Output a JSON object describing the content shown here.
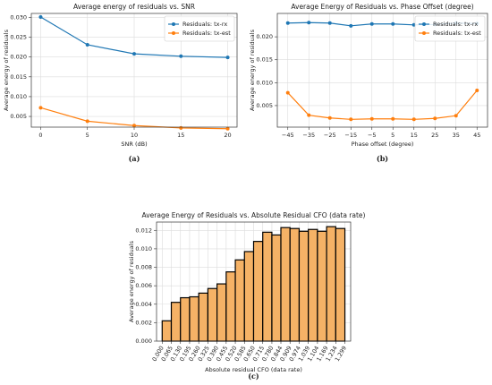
{
  "chart_data": [
    {
      "type": "line",
      "title": "Average energy of residuals vs. SNR",
      "x_label": "SNR (dB)",
      "y_label": "Average energy of residuals",
      "caption": "(a)",
      "x": [
        0,
        5,
        10,
        15,
        20
      ],
      "series": [
        {
          "name": "Residuals: tx-rx",
          "color": "#1f77b4",
          "values": [
            0.0301,
            0.0231,
            0.0208,
            0.0202,
            0.0199
          ]
        },
        {
          "name": "Residuals: tx-est",
          "color": "#ff7f0e",
          "values": [
            0.0072,
            0.0038,
            0.0027,
            0.0021,
            0.0019
          ]
        }
      ],
      "xlim": [
        -1,
        21
      ],
      "xticks": [
        0,
        5,
        10,
        15,
        20
      ],
      "ylim": [
        0.0023,
        0.031
      ],
      "yticks": [
        0.005,
        {
          "value": 0.01,
          "label": "0.010"
        },
        0.015,
        {
          "value": 0.02,
          "label": "0.020"
        },
        0.025,
        {
          "value": 0.03,
          "label": "0.030"
        }
      ],
      "grid": true,
      "legend": "upper right"
    },
    {
      "type": "line",
      "title": "Average Energy of Residuals vs. Phase Offset (degree)",
      "x_label": "Phase offset (degree)",
      "y_label": "Average energy of residuals",
      "caption": "(b)",
      "x": [
        -45,
        -35,
        -25,
        -15,
        -5,
        5,
        15,
        25,
        35,
        45
      ],
      "series": [
        {
          "name": "Residuals: tx-rx",
          "color": "#1f77b4",
          "values": [
            0.023,
            0.0231,
            0.023,
            0.0224,
            0.0228,
            0.0228,
            0.0226,
            0.0227,
            0.023,
            0.0229
          ]
        },
        {
          "name": "Residuals: tx-est",
          "color": "#ff7f0e",
          "values": [
            0.0078,
            0.0029,
            0.0023,
            0.002,
            0.0021,
            0.0021,
            0.002,
            0.0022,
            0.0028,
            0.0083
          ]
        }
      ],
      "xlim": [
        -50,
        50
      ],
      "xticks": [
        {
          "value": -45,
          "label": "−45"
        },
        {
          "value": -35,
          "label": "−35"
        },
        {
          "value": -25,
          "label": "−25"
        },
        {
          "value": -15,
          "label": "−15"
        },
        {
          "value": -5,
          "label": "−5"
        },
        5,
        15,
        25,
        35,
        45
      ],
      "ylim": [
        0.0003,
        0.0251
      ],
      "yticks": [
        0.005,
        {
          "value": 0.01,
          "label": "0.010"
        },
        0.015,
        {
          "value": 0.02,
          "label": "0.020"
        }
      ],
      "grid": true,
      "legend": "upper right"
    },
    {
      "type": "histogram",
      "title": "Average Energy of Residuals vs. Absolute Residual CFO (data rate)",
      "x_label": "Absolute residual CFO (data rate)",
      "y_label": "Average energy of residuals",
      "caption": "(c)",
      "color": "#f5b266",
      "edge_color": "#000000",
      "bins": [
        0,
        0.065,
        0.13,
        0.195,
        0.26,
        0.325,
        0.39,
        0.455,
        0.52,
        0.585,
        0.65,
        0.715,
        0.78,
        0.844,
        0.909,
        0.974,
        1.039,
        1.104,
        1.169,
        1.234,
        1.299
      ],
      "values": [
        0.0022,
        0.0042,
        0.0047,
        0.0048,
        0.0052,
        0.0057,
        0.0062,
        0.0075,
        0.0088,
        0.0097,
        0.0108,
        0.0118,
        0.0115,
        0.0123,
        0.0122,
        0.0119,
        0.0121,
        0.0119,
        0.0124,
        0.0122
      ],
      "xlim": [
        -0.04,
        1.34
      ],
      "xticks": [
        {
          "value": 0,
          "label": "0.000"
        },
        0.065,
        {
          "value": 0.13,
          "label": "0.130"
        },
        0.195,
        {
          "value": 0.26,
          "label": "0.260"
        },
        0.325,
        {
          "value": 0.39,
          "label": "0.390"
        },
        0.455,
        {
          "value": 0.52,
          "label": "0.520"
        },
        0.585,
        {
          "value": 0.65,
          "label": "0.650"
        },
        0.715,
        {
          "value": 0.78,
          "label": "0.780"
        },
        0.844,
        0.909,
        0.974,
        1.039,
        1.104,
        1.169,
        1.234,
        1.299
      ],
      "ylim": [
        0,
        0.0129
      ],
      "yticks": [
        {
          "value": 0,
          "label": "0.000"
        },
        0.002,
        0.004,
        0.006,
        0.008,
        {
          "value": 0.01,
          "label": "0.010"
        },
        0.012
      ],
      "grid": true
    }
  ]
}
